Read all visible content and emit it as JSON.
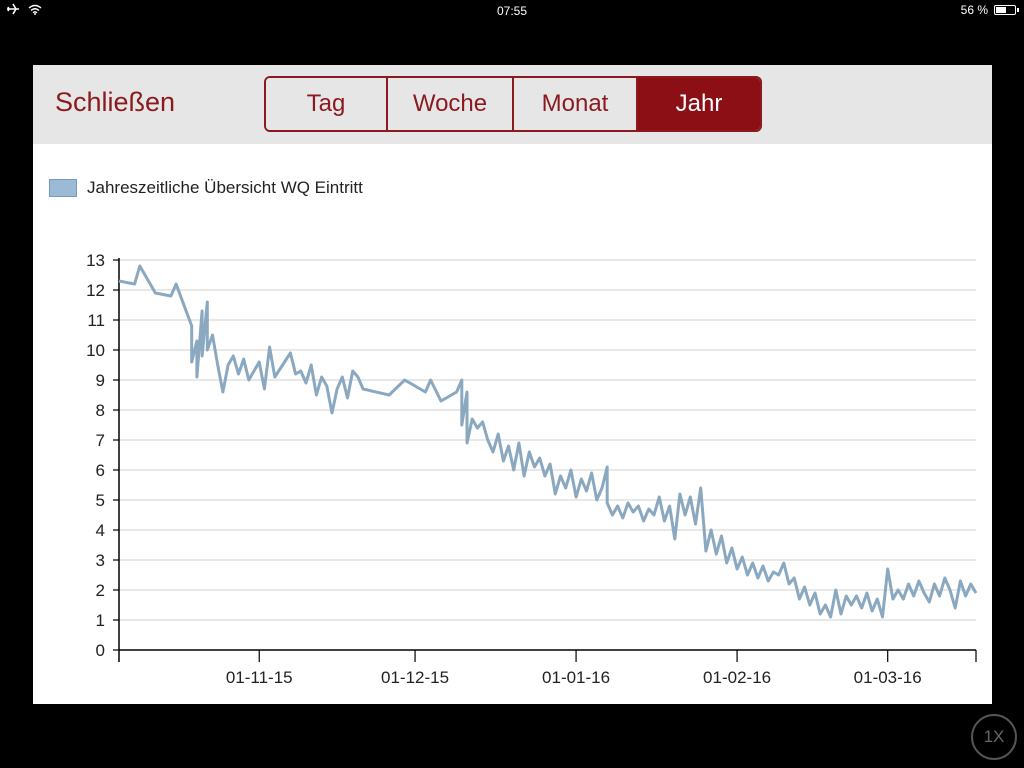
{
  "status_bar": {
    "time": "07:55",
    "battery_text": "56 %",
    "battery_level": 0.56,
    "icons": [
      "airplane-icon",
      "wifi-icon",
      "battery-icon"
    ]
  },
  "toolbar": {
    "close_label": "Schließen",
    "segments": [
      {
        "label": "Tag",
        "active": false
      },
      {
        "label": "Woche",
        "active": false
      },
      {
        "label": "Monat",
        "active": false
      },
      {
        "label": "Jahr",
        "active": true
      }
    ]
  },
  "colors": {
    "accent": "#8b0f14",
    "line": "#8aa8bf",
    "legend_fill": "#9bbad5",
    "grid": "#d9d9d9"
  },
  "zoom": "1X",
  "chart_data": {
    "type": "line",
    "title": "",
    "xlabel": "",
    "ylabel": "",
    "x_axis": "date",
    "x_range": [
      "2015-10-05",
      "2016-03-18"
    ],
    "ylim": [
      0,
      13
    ],
    "y_ticks": [
      0,
      1,
      2,
      3,
      4,
      5,
      6,
      7,
      8,
      9,
      10,
      11,
      12,
      13
    ],
    "x_ticks": [
      {
        "date": "2015-11-01",
        "label": "01-11-15"
      },
      {
        "date": "2015-12-01",
        "label": "01-12-15"
      },
      {
        "date": "2016-01-01",
        "label": "01-01-16"
      },
      {
        "date": "2016-02-01",
        "label": "01-02-16"
      },
      {
        "date": "2016-03-01",
        "label": "01-03-16"
      }
    ],
    "grid": true,
    "legend_position": "top-left",
    "series": [
      {
        "name": "Jahreszeitliche Übersicht WQ Eintritt",
        "points": [
          [
            "2015-10-05",
            12.3
          ],
          [
            "2015-10-08",
            12.2
          ],
          [
            "2015-10-09",
            12.8
          ],
          [
            "2015-10-12",
            11.9
          ],
          [
            "2015-10-15",
            11.8
          ],
          [
            "2015-10-16",
            12.2
          ],
          [
            "2015-10-19",
            10.8
          ],
          [
            "2015-10-19",
            9.6
          ],
          [
            "2015-10-20",
            10.3
          ],
          [
            "2015-10-20",
            9.1
          ],
          [
            "2015-10-21",
            11.3
          ],
          [
            "2015-10-21",
            9.8
          ],
          [
            "2015-10-22",
            11.6
          ],
          [
            "2015-10-22",
            10.0
          ],
          [
            "2015-10-23",
            10.5
          ],
          [
            "2015-10-24",
            9.5
          ],
          [
            "2015-10-25",
            8.6
          ],
          [
            "2015-10-26",
            9.5
          ],
          [
            "2015-10-27",
            9.8
          ],
          [
            "2015-10-28",
            9.2
          ],
          [
            "2015-10-29",
            9.7
          ],
          [
            "2015-10-30",
            9.0
          ],
          [
            "2015-11-01",
            9.6
          ],
          [
            "2015-11-02",
            8.7
          ],
          [
            "2015-11-03",
            10.1
          ],
          [
            "2015-11-04",
            9.1
          ],
          [
            "2015-11-07",
            9.9
          ],
          [
            "2015-11-08",
            9.2
          ],
          [
            "2015-11-09",
            9.3
          ],
          [
            "2015-11-10",
            8.9
          ],
          [
            "2015-11-11",
            9.5
          ],
          [
            "2015-11-12",
            8.5
          ],
          [
            "2015-11-13",
            9.1
          ],
          [
            "2015-11-14",
            8.8
          ],
          [
            "2015-11-15",
            7.9
          ],
          [
            "2015-11-16",
            8.7
          ],
          [
            "2015-11-17",
            9.1
          ],
          [
            "2015-11-18",
            8.4
          ],
          [
            "2015-11-19",
            9.3
          ],
          [
            "2015-11-20",
            9.1
          ],
          [
            "2015-11-21",
            8.7
          ],
          [
            "2015-11-26",
            8.5
          ],
          [
            "2015-11-29",
            9.0
          ],
          [
            "2015-12-03",
            8.6
          ],
          [
            "2015-12-04",
            9.0
          ],
          [
            "2015-12-06",
            8.3
          ],
          [
            "2015-12-09",
            8.6
          ],
          [
            "2015-12-10",
            9.0
          ],
          [
            "2015-12-10",
            7.5
          ],
          [
            "2015-12-11",
            8.6
          ],
          [
            "2015-12-11",
            6.9
          ],
          [
            "2015-12-12",
            7.7
          ],
          [
            "2015-12-13",
            7.4
          ],
          [
            "2015-12-14",
            7.6
          ],
          [
            "2015-12-15",
            7.0
          ],
          [
            "2015-12-16",
            6.6
          ],
          [
            "2015-12-17",
            7.2
          ],
          [
            "2015-12-18",
            6.3
          ],
          [
            "2015-12-19",
            6.8
          ],
          [
            "2015-12-20",
            6.0
          ],
          [
            "2015-12-21",
            6.9
          ],
          [
            "2015-12-22",
            5.8
          ],
          [
            "2015-12-23",
            6.6
          ],
          [
            "2015-12-24",
            6.1
          ],
          [
            "2015-12-25",
            6.4
          ],
          [
            "2015-12-26",
            5.8
          ],
          [
            "2015-12-27",
            6.2
          ],
          [
            "2015-12-28",
            5.2
          ],
          [
            "2015-12-29",
            5.8
          ],
          [
            "2015-12-30",
            5.4
          ],
          [
            "2015-12-31",
            6.0
          ],
          [
            "2016-01-01",
            5.1
          ],
          [
            "2016-01-02",
            5.7
          ],
          [
            "2016-01-03",
            5.3
          ],
          [
            "2016-01-04",
            5.9
          ],
          [
            "2016-01-05",
            5.0
          ],
          [
            "2016-01-06",
            5.4
          ],
          [
            "2016-01-07",
            6.1
          ],
          [
            "2016-01-07",
            4.9
          ],
          [
            "2016-01-08",
            4.5
          ],
          [
            "2016-01-09",
            4.8
          ],
          [
            "2016-01-10",
            4.4
          ],
          [
            "2016-01-11",
            4.9
          ],
          [
            "2016-01-12",
            4.6
          ],
          [
            "2016-01-13",
            4.8
          ],
          [
            "2016-01-14",
            4.3
          ],
          [
            "2016-01-15",
            4.7
          ],
          [
            "2016-01-16",
            4.5
          ],
          [
            "2016-01-17",
            5.1
          ],
          [
            "2016-01-18",
            4.3
          ],
          [
            "2016-01-19",
            4.8
          ],
          [
            "2016-01-20",
            3.7
          ],
          [
            "2016-01-21",
            5.2
          ],
          [
            "2016-01-22",
            4.5
          ],
          [
            "2016-01-23",
            5.1
          ],
          [
            "2016-01-24",
            4.2
          ],
          [
            "2016-01-25",
            5.4
          ],
          [
            "2016-01-26",
            3.3
          ],
          [
            "2016-01-27",
            4.0
          ],
          [
            "2016-01-28",
            3.2
          ],
          [
            "2016-01-29",
            3.8
          ],
          [
            "2016-01-30",
            2.9
          ],
          [
            "2016-01-31",
            3.4
          ],
          [
            "2016-02-01",
            2.7
          ],
          [
            "2016-02-02",
            3.1
          ],
          [
            "2016-02-03",
            2.5
          ],
          [
            "2016-02-04",
            2.9
          ],
          [
            "2016-02-05",
            2.4
          ],
          [
            "2016-02-06",
            2.8
          ],
          [
            "2016-02-07",
            2.3
          ],
          [
            "2016-02-08",
            2.6
          ],
          [
            "2016-02-09",
            2.5
          ],
          [
            "2016-02-10",
            2.9
          ],
          [
            "2016-02-11",
            2.2
          ],
          [
            "2016-02-12",
            2.4
          ],
          [
            "2016-02-13",
            1.7
          ],
          [
            "2016-02-14",
            2.1
          ],
          [
            "2016-02-15",
            1.5
          ],
          [
            "2016-02-16",
            1.9
          ],
          [
            "2016-02-17",
            1.2
          ],
          [
            "2016-02-18",
            1.5
          ],
          [
            "2016-02-19",
            1.1
          ],
          [
            "2016-02-20",
            2.0
          ],
          [
            "2016-02-21",
            1.2
          ],
          [
            "2016-02-22",
            1.8
          ],
          [
            "2016-02-23",
            1.5
          ],
          [
            "2016-02-24",
            1.8
          ],
          [
            "2016-02-25",
            1.4
          ],
          [
            "2016-02-26",
            1.9
          ],
          [
            "2016-02-27",
            1.3
          ],
          [
            "2016-02-28",
            1.7
          ],
          [
            "2016-02-29",
            1.1
          ],
          [
            "2016-03-01",
            2.7
          ],
          [
            "2016-03-02",
            1.7
          ],
          [
            "2016-03-03",
            2.0
          ],
          [
            "2016-03-04",
            1.7
          ],
          [
            "2016-03-05",
            2.2
          ],
          [
            "2016-03-06",
            1.8
          ],
          [
            "2016-03-07",
            2.3
          ],
          [
            "2016-03-08",
            1.9
          ],
          [
            "2016-03-09",
            1.6
          ],
          [
            "2016-03-10",
            2.2
          ],
          [
            "2016-03-11",
            1.8
          ],
          [
            "2016-03-12",
            2.4
          ],
          [
            "2016-03-13",
            2.0
          ],
          [
            "2016-03-14",
            1.4
          ],
          [
            "2016-03-15",
            2.3
          ],
          [
            "2016-03-16",
            1.8
          ],
          [
            "2016-03-17",
            2.2
          ],
          [
            "2016-03-18",
            1.9
          ]
        ]
      }
    ]
  }
}
